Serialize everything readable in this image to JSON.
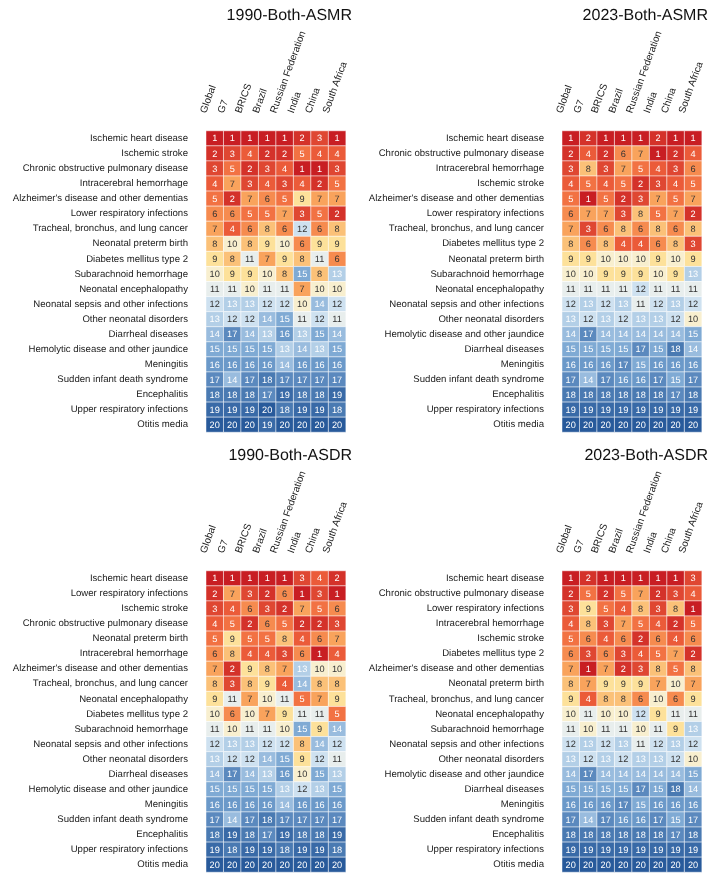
{
  "chart_data": [
    {
      "type": "heatmap",
      "title": "1990-Both-ASMR",
      "data_labels": true,
      "categories": [
        "Global",
        "G7",
        "BRICS",
        "Brazil",
        "Russian Federation",
        "India",
        "China",
        "South Africa"
      ],
      "y_categories": [
        "Ischemic heart disease",
        "Ischemic stroke",
        "Chronic obstructive pulmonary disease",
        "Intracerebral hemorrhage",
        "Alzheimer's disease and other dementias",
        "Lower respiratory infections",
        "Tracheal, bronchus, and lung cancer",
        "Neonatal preterm birth",
        "Diabetes mellitus type 2",
        "Subarachnoid hemorrhage",
        "Neonatal encephalopathy",
        "Neonatal sepsis and other infections",
        "Other neonatal disorders",
        "Diarrheal diseases",
        "Hemolytic disease and other jaundice",
        "Meningitis",
        "Sudden infant death syndrome",
        "Encephalitis",
        "Upper respiratory infections",
        "Otitis media"
      ],
      "cells": [
        [
          1,
          1,
          1,
          1,
          1,
          2,
          3,
          1
        ],
        [
          2,
          3,
          4,
          2,
          2,
          5,
          4,
          4
        ],
        [
          3,
          5,
          2,
          3,
          4,
          1,
          1,
          3
        ],
        [
          4,
          7,
          3,
          4,
          3,
          4,
          2,
          5
        ],
        [
          5,
          2,
          7,
          6,
          5,
          9,
          7,
          7
        ],
        [
          6,
          6,
          5,
          5,
          7,
          3,
          5,
          2
        ],
        [
          7,
          4,
          6,
          8,
          6,
          12,
          6,
          8
        ],
        [
          8,
          10,
          8,
          9,
          10,
          6,
          9,
          9
        ],
        [
          9,
          8,
          11,
          7,
          9,
          8,
          11,
          6
        ],
        [
          10,
          9,
          9,
          10,
          8,
          15,
          8,
          13
        ],
        [
          11,
          11,
          10,
          11,
          11,
          7,
          10,
          10
        ],
        [
          12,
          13,
          13,
          12,
          12,
          10,
          14,
          12
        ],
        [
          13,
          12,
          12,
          14,
          15,
          11,
          12,
          11
        ],
        [
          14,
          17,
          14,
          13,
          16,
          13,
          15,
          14
        ],
        [
          15,
          15,
          15,
          15,
          13,
          14,
          13,
          15
        ],
        [
          16,
          16,
          16,
          16,
          14,
          16,
          16,
          16
        ],
        [
          17,
          14,
          17,
          18,
          17,
          17,
          17,
          17
        ],
        [
          18,
          18,
          18,
          17,
          19,
          18,
          18,
          19
        ],
        [
          19,
          19,
          19,
          20,
          18,
          19,
          19,
          18
        ],
        [
          20,
          20,
          20,
          19,
          20,
          20,
          20,
          20
        ]
      ]
    },
    {
      "type": "heatmap",
      "title": "2023-Both-ASMR",
      "data_labels": true,
      "categories": [
        "Global",
        "G7",
        "BRICS",
        "Brazil",
        "Russian Federation",
        "India",
        "China",
        "South Africa"
      ],
      "y_categories": [
        "Ischemic heart disease",
        "Chronic obstructive pulmonary disease",
        "Intracerebral hemorrhage",
        "Ischemic stroke",
        "Alzheimer's disease and other dementias",
        "Lower respiratory infections",
        "Tracheal, bronchus, and lung cancer",
        "Diabetes mellitus type 2",
        "Neonatal preterm birth",
        "Subarachnoid hemorrhage",
        "Neonatal encephalopathy",
        "Neonatal sepsis and other infections",
        "Other neonatal disorders",
        "Hemolytic disease and other jaundice",
        "Diarrheal diseases",
        "Meningitis",
        "Sudden infant death syndrome",
        "Encephalitis",
        "Upper respiratory infections",
        "Otitis media"
      ],
      "cells": [
        [
          1,
          2,
          1,
          1,
          1,
          2,
          1,
          1
        ],
        [
          2,
          4,
          2,
          6,
          7,
          1,
          2,
          4
        ],
        [
          3,
          8,
          3,
          7,
          5,
          4,
          3,
          6
        ],
        [
          4,
          5,
          4,
          5,
          2,
          3,
          4,
          5
        ],
        [
          5,
          1,
          5,
          2,
          3,
          7,
          5,
          7
        ],
        [
          6,
          7,
          7,
          3,
          8,
          5,
          7,
          2
        ],
        [
          7,
          3,
          6,
          8,
          6,
          8,
          6,
          8
        ],
        [
          8,
          6,
          8,
          4,
          4,
          6,
          8,
          3
        ],
        [
          9,
          9,
          10,
          10,
          10,
          9,
          10,
          9
        ],
        [
          10,
          10,
          9,
          9,
          9,
          10,
          9,
          13
        ],
        [
          11,
          11,
          11,
          11,
          12,
          11,
          11,
          11
        ],
        [
          12,
          13,
          12,
          13,
          11,
          12,
          13,
          12
        ],
        [
          13,
          12,
          13,
          12,
          13,
          13,
          12,
          10
        ],
        [
          14,
          17,
          14,
          14,
          14,
          14,
          14,
          15
        ],
        [
          15,
          15,
          15,
          15,
          17,
          15,
          18,
          14
        ],
        [
          16,
          16,
          16,
          17,
          15,
          16,
          16,
          16
        ],
        [
          17,
          14,
          17,
          16,
          16,
          17,
          15,
          17
        ],
        [
          18,
          18,
          18,
          18,
          18,
          18,
          17,
          18
        ],
        [
          19,
          19,
          19,
          19,
          19,
          19,
          19,
          19
        ],
        [
          20,
          20,
          20,
          20,
          20,
          20,
          20,
          20
        ]
      ]
    },
    {
      "type": "heatmap",
      "title": "1990-Both-ASDR",
      "data_labels": true,
      "categories": [
        "Global",
        "G7",
        "BRICS",
        "Brazil",
        "Russian Federation",
        "India",
        "China",
        "South Africa"
      ],
      "y_categories": [
        "Ischemic heart disease",
        "Lower respiratory infections",
        "Ischemic stroke",
        "Chronic obstructive pulmonary disease",
        "Neonatal preterm birth",
        "Intracerebral hemorrhage",
        "Alzheimer's disease and other dementias",
        "Tracheal, bronchus, and lung cancer",
        "Neonatal encephalopathy",
        "Diabetes mellitus type 2",
        "Subarachnoid hemorrhage",
        "Neonatal sepsis and other infections",
        "Other neonatal disorders",
        "Diarrheal diseases",
        "Hemolytic disease and other jaundice",
        "Meningitis",
        "Sudden infant death syndrome",
        "Encephalitis",
        "Upper respiratory infections",
        "Otitis media"
      ],
      "cells": [
        [
          1,
          1,
          1,
          1,
          1,
          3,
          4,
          2
        ],
        [
          2,
          7,
          3,
          2,
          6,
          1,
          3,
          1
        ],
        [
          3,
          4,
          6,
          3,
          2,
          7,
          5,
          6
        ],
        [
          4,
          5,
          2,
          6,
          5,
          2,
          2,
          3
        ],
        [
          5,
          9,
          5,
          5,
          8,
          4,
          6,
          7
        ],
        [
          6,
          8,
          4,
          4,
          3,
          6,
          1,
          4
        ],
        [
          7,
          2,
          9,
          8,
          7,
          13,
          10,
          10
        ],
        [
          8,
          3,
          8,
          9,
          4,
          14,
          8,
          8
        ],
        [
          9,
          11,
          7,
          10,
          11,
          5,
          7,
          9
        ],
        [
          10,
          6,
          10,
          7,
          9,
          11,
          11,
          5
        ],
        [
          11,
          10,
          11,
          11,
          10,
          15,
          9,
          14
        ],
        [
          12,
          13,
          13,
          12,
          12,
          8,
          14,
          12
        ],
        [
          13,
          12,
          12,
          14,
          15,
          9,
          12,
          11
        ],
        [
          14,
          17,
          14,
          13,
          16,
          10,
          15,
          13
        ],
        [
          15,
          15,
          15,
          15,
          13,
          12,
          13,
          15
        ],
        [
          16,
          16,
          16,
          16,
          14,
          16,
          16,
          16
        ],
        [
          17,
          14,
          17,
          18,
          17,
          17,
          17,
          17
        ],
        [
          18,
          19,
          18,
          17,
          19,
          18,
          18,
          19
        ],
        [
          19,
          18,
          19,
          19,
          18,
          19,
          19,
          18
        ],
        [
          20,
          20,
          20,
          20,
          20,
          20,
          20,
          20
        ]
      ]
    },
    {
      "type": "heatmap",
      "title": "2023-Both-ASDR",
      "data_labels": true,
      "categories": [
        "Global",
        "G7",
        "BRICS",
        "Brazil",
        "Russian Federation",
        "India",
        "China",
        "South Africa"
      ],
      "y_categories": [
        "Ischemic heart disease",
        "Chronic obstructive pulmonary disease",
        "Lower respiratory infections",
        "Intracerebral hemorrhage",
        "Ischemic stroke",
        "Diabetes mellitus type 2",
        "Alzheimer's disease and other dementias",
        "Neonatal preterm birth",
        "Tracheal, bronchus, and lung cancer",
        "Neonatal encephalopathy",
        "Subarachnoid hemorrhage",
        "Neonatal sepsis and other infections",
        "Other neonatal disorders",
        "Hemolytic disease and other jaundice",
        "Diarrheal diseases",
        "Meningitis",
        "Sudden infant death syndrome",
        "Encephalitis",
        "Upper respiratory infections",
        "Otitis media"
      ],
      "cells": [
        [
          1,
          2,
          1,
          1,
          1,
          1,
          1,
          3
        ],
        [
          2,
          5,
          2,
          5,
          7,
          2,
          3,
          4
        ],
        [
          3,
          9,
          5,
          4,
          8,
          3,
          8,
          1
        ],
        [
          4,
          8,
          3,
          7,
          5,
          4,
          2,
          5
        ],
        [
          5,
          6,
          4,
          6,
          2,
          6,
          4,
          6
        ],
        [
          6,
          3,
          6,
          3,
          4,
          5,
          7,
          2
        ],
        [
          7,
          1,
          7,
          2,
          3,
          8,
          5,
          8
        ],
        [
          8,
          7,
          9,
          9,
          9,
          7,
          10,
          7
        ],
        [
          9,
          4,
          8,
          8,
          6,
          10,
          6,
          9
        ],
        [
          10,
          11,
          10,
          10,
          12,
          9,
          11,
          11
        ],
        [
          11,
          10,
          11,
          11,
          10,
          11,
          9,
          13
        ],
        [
          12,
          13,
          12,
          13,
          11,
          12,
          13,
          12
        ],
        [
          13,
          12,
          13,
          12,
          13,
          13,
          12,
          10
        ],
        [
          14,
          17,
          14,
          14,
          14,
          14,
          14,
          15
        ],
        [
          15,
          15,
          15,
          15,
          17,
          15,
          18,
          14
        ],
        [
          16,
          16,
          16,
          17,
          15,
          16,
          16,
          16
        ],
        [
          17,
          14,
          17,
          16,
          16,
          17,
          15,
          17
        ],
        [
          18,
          18,
          18,
          18,
          18,
          18,
          17,
          18
        ],
        [
          19,
          19,
          19,
          19,
          19,
          19,
          19,
          19
        ],
        [
          20,
          20,
          20,
          20,
          20,
          20,
          20,
          20
        ]
      ]
    }
  ]
}
